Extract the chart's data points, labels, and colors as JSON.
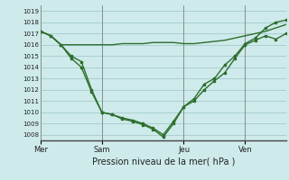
{
  "background_color": "#ceeaea",
  "grid_color": "#aacfcf",
  "line_color": "#2d6e2d",
  "ylim": [
    1007.5,
    1019.5
  ],
  "yticks": [
    1008,
    1009,
    1010,
    1011,
    1012,
    1013,
    1014,
    1015,
    1016,
    1017,
    1018,
    1019
  ],
  "xlabel": "Pression niveau de la mer( hPa )",
  "day_labels": [
    "Mer",
    "Sam",
    "Jeu",
    "Ven"
  ],
  "day_positions": [
    0,
    6,
    14,
    20
  ],
  "xlim": [
    0,
    24
  ],
  "series1_x": [
    0,
    1,
    2,
    3,
    4,
    5,
    6,
    7,
    8,
    9,
    10,
    11,
    12,
    13,
    14,
    15,
    16,
    17,
    18,
    19,
    20,
    21,
    22,
    23,
    24
  ],
  "series1_y": [
    1017.2,
    1016.8,
    1016.0,
    1016.0,
    1016.0,
    1016.0,
    1016.0,
    1016.0,
    1016.1,
    1016.1,
    1016.1,
    1016.2,
    1016.2,
    1016.2,
    1016.1,
    1016.1,
    1016.2,
    1016.3,
    1016.4,
    1016.6,
    1016.8,
    1017.0,
    1017.2,
    1017.5,
    1017.8
  ],
  "series2_x": [
    0,
    1,
    2,
    3,
    4,
    5,
    6,
    7,
    8,
    9,
    10,
    11,
    12,
    13,
    14,
    15,
    16,
    17,
    18,
    19,
    20,
    21,
    22,
    23,
    24
  ],
  "series2_y": [
    1017.2,
    1016.8,
    1016.0,
    1015.0,
    1014.5,
    1012.0,
    1010.0,
    1009.8,
    1009.5,
    1009.3,
    1009.0,
    1008.6,
    1008.0,
    1009.2,
    1010.5,
    1011.0,
    1012.0,
    1012.8,
    1013.5,
    1014.8,
    1016.0,
    1016.4,
    1016.8,
    1016.5,
    1017.0
  ],
  "series3_x": [
    0,
    1,
    2,
    3,
    4,
    5,
    6,
    7,
    8,
    9,
    10,
    11,
    12,
    13,
    14,
    15,
    16,
    17,
    18,
    19,
    20,
    21,
    22,
    23,
    24
  ],
  "series3_y": [
    1017.2,
    1016.8,
    1016.0,
    1014.8,
    1014.0,
    1011.8,
    1010.0,
    1009.8,
    1009.4,
    1009.2,
    1008.9,
    1008.5,
    1007.8,
    1009.0,
    1010.5,
    1011.2,
    1012.5,
    1013.0,
    1014.2,
    1015.0,
    1016.1,
    1016.6,
    1017.5,
    1018.0,
    1018.2
  ]
}
